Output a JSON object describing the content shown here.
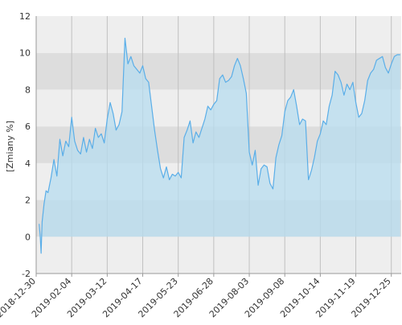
{
  "chart_data": {
    "type": "area",
    "title": "",
    "xlabel": "",
    "ylabel": "[Zmiany %]",
    "ylim": [
      -2,
      12
    ],
    "yticks": [
      -2,
      0,
      2,
      4,
      6,
      8,
      10,
      12
    ],
    "xlim": [
      "2018-12-30",
      "2020-01-04"
    ],
    "xticks": [
      "2018-12-30",
      "2019-02-04",
      "2019-03-12",
      "2019-04-17",
      "2019-05-23",
      "2019-06-28",
      "2019-08-03",
      "2019-09-08",
      "2019-10-14",
      "2019-11-19",
      "2019-12-25"
    ],
    "grid": true,
    "legend": "none",
    "colors": {
      "line": "#5aaee8",
      "fill": "#b7dcef",
      "band_light": "#eeeeee",
      "band_dark": "#dddddd",
      "grid": "#c0c0c0",
      "axis": "#999999"
    },
    "series": [
      {
        "x": [
          "2019-01-02",
          "2019-01-03",
          "2019-01-04",
          "2019-01-05",
          "2019-01-07",
          "2019-01-09",
          "2019-01-11",
          "2019-01-14",
          "2019-01-17",
          "2019-01-20",
          "2019-01-23",
          "2019-01-26",
          "2019-01-29",
          "2019-02-01",
          "2019-02-04",
          "2019-02-07",
          "2019-02-10",
          "2019-02-13",
          "2019-02-16",
          "2019-02-19",
          "2019-02-22",
          "2019-02-25",
          "2019-02-28",
          "2019-03-03",
          "2019-03-06",
          "2019-03-09",
          "2019-03-12",
          "2019-03-15",
          "2019-03-18",
          "2019-03-21",
          "2019-03-24",
          "2019-03-27",
          "2019-03-30",
          "2019-04-02",
          "2019-04-05",
          "2019-04-08",
          "2019-04-11",
          "2019-04-14",
          "2019-04-17",
          "2019-04-20",
          "2019-04-23",
          "2019-04-26",
          "2019-04-29",
          "2019-05-02",
          "2019-05-05",
          "2019-05-08",
          "2019-05-11",
          "2019-05-14",
          "2019-05-17",
          "2019-05-20",
          "2019-05-23",
          "2019-05-26",
          "2019-05-29",
          "2019-06-01",
          "2019-06-04",
          "2019-06-07",
          "2019-06-10",
          "2019-06-13",
          "2019-06-16",
          "2019-06-19",
          "2019-06-22",
          "2019-06-25",
          "2019-06-28",
          "2019-07-01",
          "2019-07-04",
          "2019-07-07",
          "2019-07-10",
          "2019-07-13",
          "2019-07-16",
          "2019-07-19",
          "2019-07-22",
          "2019-07-25",
          "2019-07-28",
          "2019-07-31",
          "2019-08-03",
          "2019-08-06",
          "2019-08-09",
          "2019-08-12",
          "2019-08-15",
          "2019-08-18",
          "2019-08-21",
          "2019-08-24",
          "2019-08-27",
          "2019-08-30",
          "2019-09-02",
          "2019-09-05",
          "2019-09-08",
          "2019-09-11",
          "2019-09-14",
          "2019-09-17",
          "2019-09-20",
          "2019-09-23",
          "2019-09-26",
          "2019-09-29",
          "2019-10-02",
          "2019-10-05",
          "2019-10-08",
          "2019-10-11",
          "2019-10-14",
          "2019-10-17",
          "2019-10-20",
          "2019-10-23",
          "2019-10-26",
          "2019-10-29",
          "2019-11-01",
          "2019-11-04",
          "2019-11-07",
          "2019-11-10",
          "2019-11-13",
          "2019-11-16",
          "2019-11-19",
          "2019-11-22",
          "2019-11-25",
          "2019-11-28",
          "2019-12-01",
          "2019-12-04",
          "2019-12-07",
          "2019-12-10",
          "2019-12-13",
          "2019-12-16",
          "2019-12-19",
          "2019-12-22",
          "2019-12-25",
          "2019-12-28",
          "2019-12-31",
          "2020-01-03"
        ],
        "values": [
          0.7,
          0.1,
          -0.9,
          0.8,
          1.8,
          2.5,
          2.4,
          3.2,
          4.2,
          3.3,
          5.3,
          4.4,
          5.2,
          4.9,
          6.5,
          5.2,
          4.7,
          4.5,
          5.4,
          4.6,
          5.3,
          4.8,
          5.9,
          5.4,
          5.6,
          5.1,
          6.4,
          7.3,
          6.7,
          5.8,
          6.1,
          6.8,
          10.8,
          9.4,
          9.8,
          9.3,
          9.1,
          8.9,
          9.3,
          8.6,
          8.4,
          7.1,
          5.8,
          4.7,
          3.7,
          3.2,
          3.8,
          3.1,
          3.4,
          3.3,
          3.5,
          3.2,
          5.4,
          5.8,
          6.3,
          5.1,
          5.7,
          5.4,
          5.9,
          6.4,
          7.1,
          6.9,
          7.2,
          7.4,
          8.6,
          8.8,
          8.4,
          8.5,
          8.7,
          9.3,
          9.7,
          9.3,
          8.6,
          7.8,
          4.6,
          3.9,
          4.7,
          2.8,
          3.7,
          3.9,
          3.8,
          2.9,
          2.6,
          4.3,
          5.0,
          5.5,
          6.8,
          7.4,
          7.6,
          8.0,
          7.1,
          6.1,
          6.4,
          6.3,
          3.1,
          3.6,
          4.3,
          5.2,
          5.6,
          6.3,
          6.1,
          7.1,
          7.7,
          9.0,
          8.8,
          8.4,
          7.7,
          8.3,
          8.0,
          8.4,
          7.3,
          6.5,
          6.7,
          7.4,
          8.5,
          8.9,
          9.1,
          9.6,
          9.7,
          9.8,
          9.2,
          8.9,
          9.4,
          9.8,
          9.9,
          9.9
        ]
      }
    ]
  }
}
